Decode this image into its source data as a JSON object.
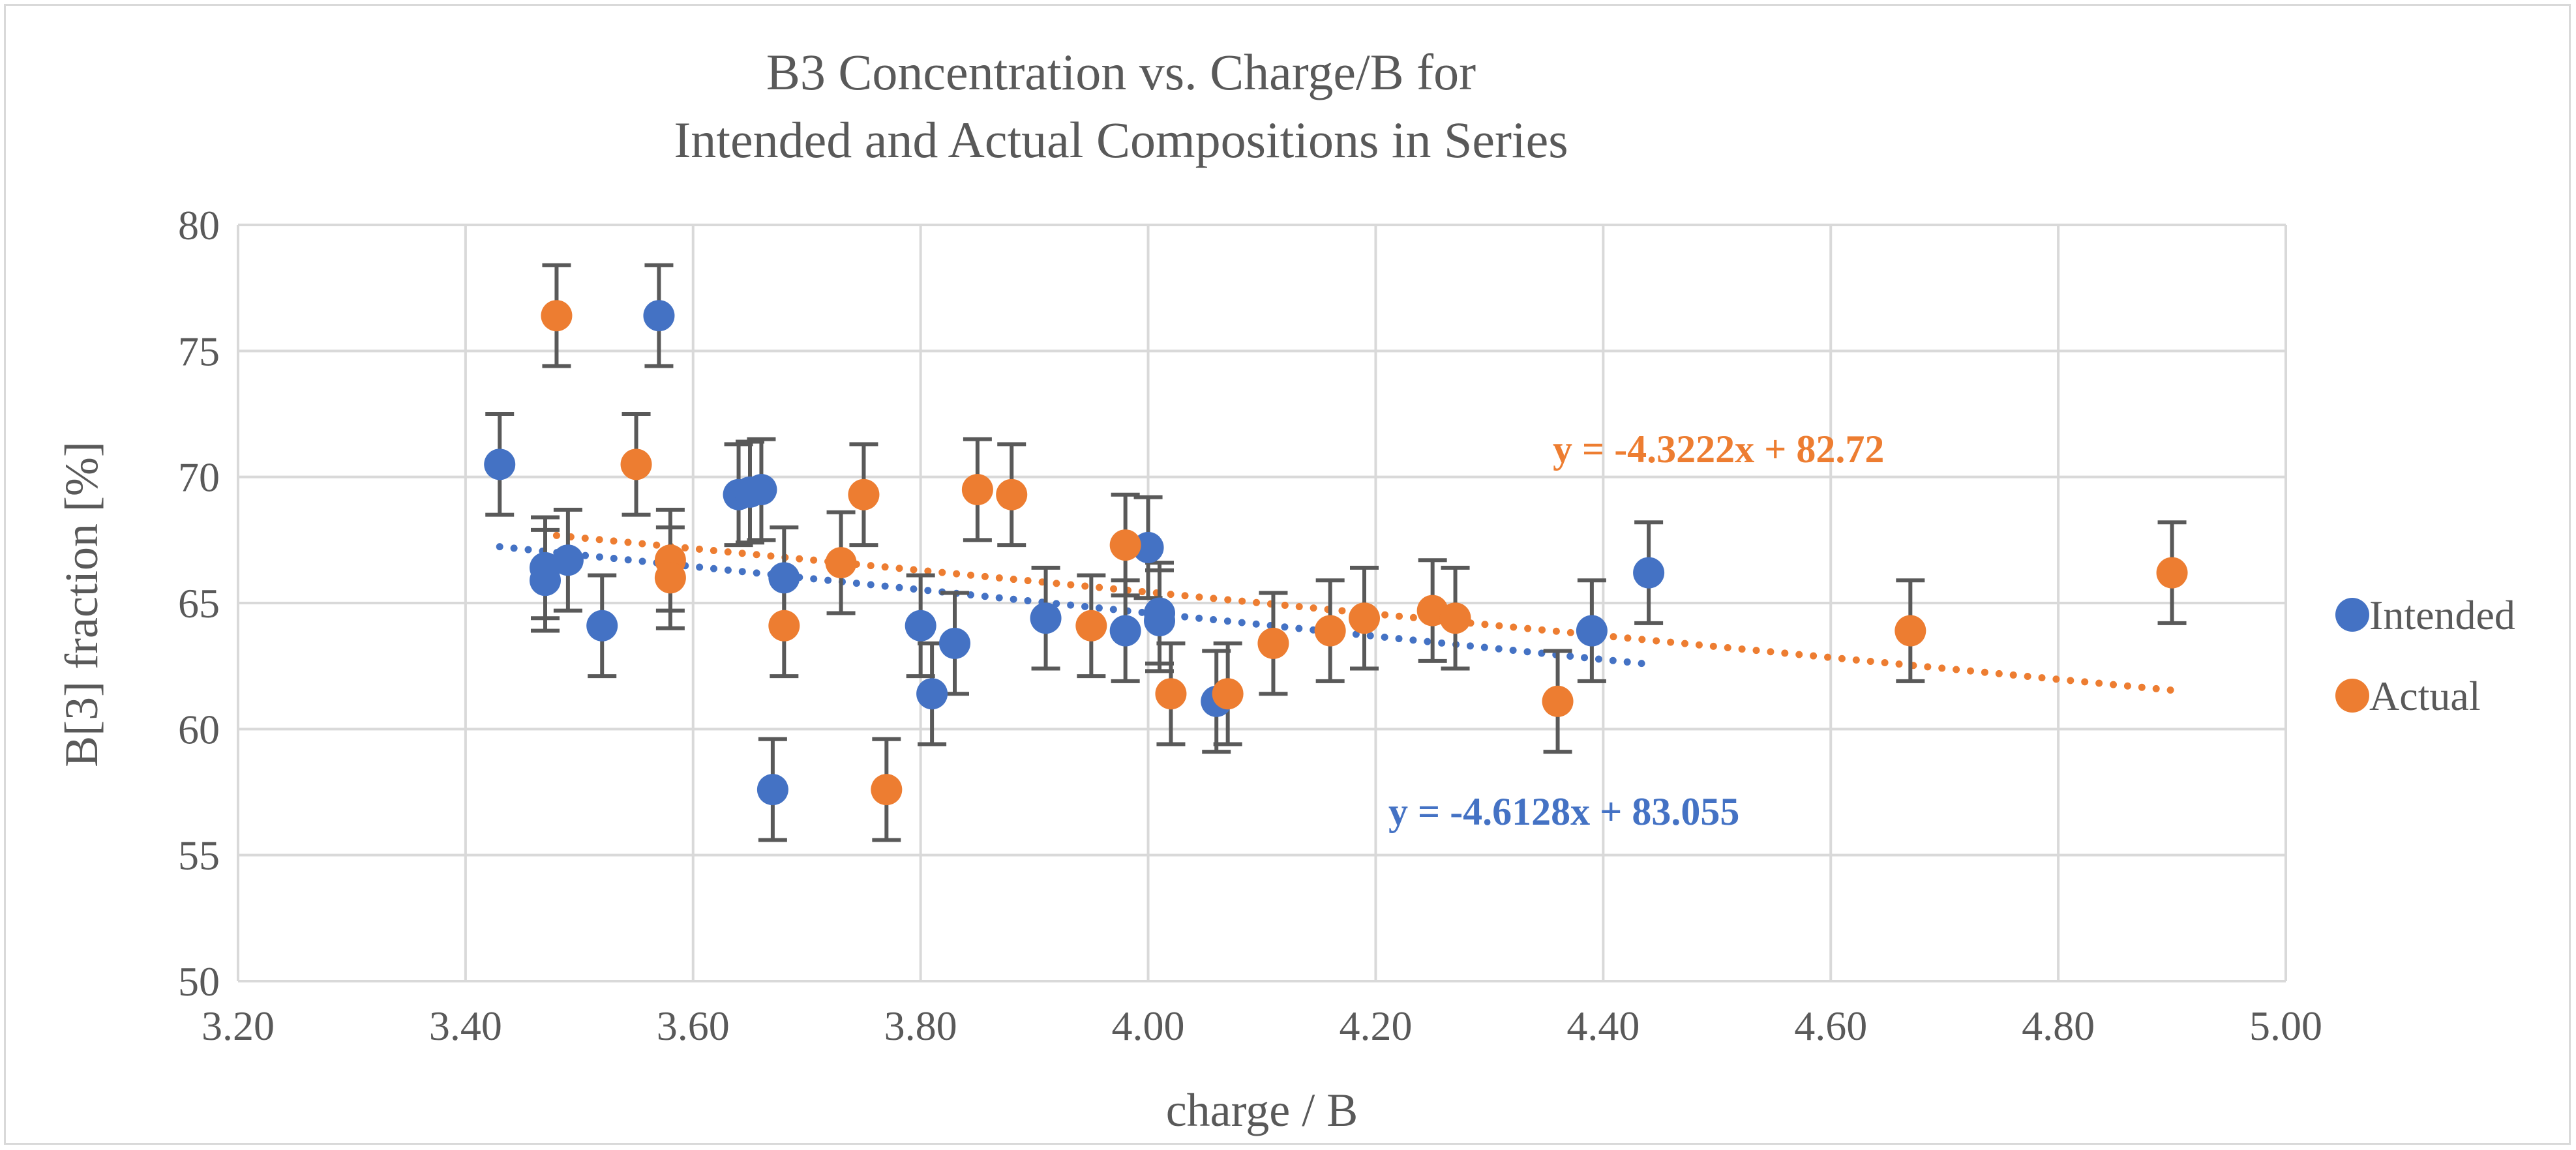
{
  "chart_data": {
    "type": "scatter",
    "title": [
      "B3 Concentration vs. Charge/B for",
      "Intended and Actual Compositions in Series"
    ],
    "xlabel": "charge / B",
    "ylabel": "B[3] fraction [%]",
    "xlim": [
      3.2,
      5.0
    ],
    "ylim": [
      50,
      80
    ],
    "xticks": [
      "3.20",
      "3.40",
      "3.60",
      "3.80",
      "4.00",
      "4.20",
      "4.40",
      "4.60",
      "4.80",
      "5.00"
    ],
    "yticks": [
      "50",
      "55",
      "60",
      "65",
      "70",
      "75",
      "80"
    ],
    "error_bar": 2,
    "grid": true,
    "legend_position": "right",
    "series": [
      {
        "name": "Intended",
        "color": "#4472c4",
        "points": [
          {
            "x": 3.43,
            "y": 70.5
          },
          {
            "x": 3.47,
            "y": 66.4
          },
          {
            "x": 3.47,
            "y": 65.9
          },
          {
            "x": 3.49,
            "y": 66.7
          },
          {
            "x": 3.52,
            "y": 64.1
          },
          {
            "x": 3.57,
            "y": 76.4
          },
          {
            "x": 3.64,
            "y": 69.3
          },
          {
            "x": 3.65,
            "y": 69.4
          },
          {
            "x": 3.66,
            "y": 69.5
          },
          {
            "x": 3.67,
            "y": 57.6
          },
          {
            "x": 3.68,
            "y": 66.0
          },
          {
            "x": 3.8,
            "y": 64.1
          },
          {
            "x": 3.81,
            "y": 61.4
          },
          {
            "x": 3.83,
            "y": 63.4
          },
          {
            "x": 3.91,
            "y": 64.4
          },
          {
            "x": 3.98,
            "y": 63.9
          },
          {
            "x": 4.0,
            "y": 67.2
          },
          {
            "x": 4.01,
            "y": 64.6
          },
          {
            "x": 4.01,
            "y": 64.3
          },
          {
            "x": 4.06,
            "y": 61.1
          },
          {
            "x": 4.39,
            "y": 63.9
          },
          {
            "x": 4.44,
            "y": 66.2
          }
        ],
        "trendline": {
          "slope": -4.6128,
          "intercept": 83.055,
          "x_range": [
            3.43,
            4.44
          ],
          "label": "y = -4.6128x + 83.055"
        }
      },
      {
        "name": "Actual",
        "color": "#ed7d31",
        "points": [
          {
            "x": 3.48,
            "y": 76.4
          },
          {
            "x": 3.55,
            "y": 70.5
          },
          {
            "x": 3.58,
            "y": 66.7
          },
          {
            "x": 3.58,
            "y": 66.0
          },
          {
            "x": 3.68,
            "y": 64.1
          },
          {
            "x": 3.73,
            "y": 66.6
          },
          {
            "x": 3.75,
            "y": 69.3
          },
          {
            "x": 3.77,
            "y": 57.6
          },
          {
            "x": 3.85,
            "y": 69.5
          },
          {
            "x": 3.88,
            "y": 69.3
          },
          {
            "x": 3.95,
            "y": 64.1
          },
          {
            "x": 3.98,
            "y": 67.3
          },
          {
            "x": 4.02,
            "y": 61.4
          },
          {
            "x": 4.07,
            "y": 61.4
          },
          {
            "x": 4.11,
            "y": 63.4
          },
          {
            "x": 4.16,
            "y": 63.9
          },
          {
            "x": 4.19,
            "y": 64.4
          },
          {
            "x": 4.25,
            "y": 64.7
          },
          {
            "x": 4.27,
            "y": 64.4
          },
          {
            "x": 4.36,
            "y": 61.1
          },
          {
            "x": 4.67,
            "y": 63.9
          },
          {
            "x": 4.9,
            "y": 66.2
          }
        ],
        "trendline": {
          "slope": -4.3222,
          "intercept": 82.72,
          "x_range": [
            3.48,
            4.9
          ],
          "label": "y = -4.3222x + 82.72"
        }
      }
    ]
  }
}
